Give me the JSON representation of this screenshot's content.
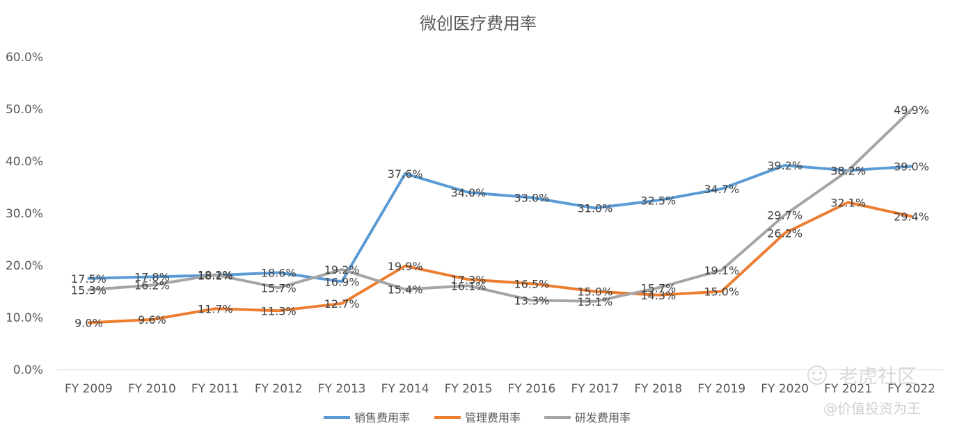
{
  "chart_data": {
    "type": "line",
    "title": "微创医疗费用率",
    "categories": [
      "FY 2009",
      "FY 2010",
      "FY 2011",
      "FY 2012",
      "FY 2013",
      "FY 2014",
      "FY 2015",
      "FY 2016",
      "FY 2017",
      "FY 2018",
      "FY 2019",
      "FY 2020",
      "FY 2021",
      "FY 2022"
    ],
    "ylim": [
      0,
      60
    ],
    "yticks": [
      "0.0%",
      "10.0%",
      "20.0%",
      "30.0%",
      "40.0%",
      "50.0%",
      "60.0%"
    ],
    "xlabel": "",
    "ylabel": "",
    "grid": false,
    "legend_position": "bottom",
    "series": [
      {
        "name": "销售费用率",
        "color": "#5b9bd5",
        "values": [
          17.5,
          17.8,
          18.1,
          18.6,
          16.9,
          37.6,
          34.0,
          33.0,
          31.0,
          32.5,
          34.7,
          39.2,
          38.2,
          39.0
        ],
        "labels": [
          "17.5%",
          "17.8%",
          "18.1%",
          "18.6%",
          "16.9%",
          "37.6%",
          "34.0%",
          "33.0%",
          "31.0%",
          "32.5%",
          "34.7%",
          "39.2%",
          "38.2%",
          "39.0%"
        ]
      },
      {
        "name": "管理费用率",
        "color": "#ed7d31",
        "values": [
          9.0,
          9.6,
          11.7,
          11.3,
          12.7,
          19.9,
          17.3,
          16.5,
          15.0,
          14.3,
          15.0,
          26.2,
          32.1,
          29.4
        ],
        "labels": [
          "9.0%",
          "9.6%",
          "11.7%",
          "11.3%",
          "12.7%",
          "19.9%",
          "17.3%",
          "16.5%",
          "15.0%",
          "14.3%",
          "15.0%",
          "26.2%",
          "32.1%",
          "29.4%"
        ]
      },
      {
        "name": "研发费用率",
        "color": "#a5a5a5",
        "values": [
          15.3,
          16.2,
          18.2,
          15.7,
          19.2,
          15.4,
          16.1,
          13.3,
          13.1,
          15.7,
          19.1,
          29.7,
          38.2,
          49.9
        ],
        "labels": [
          "15.3%",
          "16.2%",
          "18.2%",
          "15.7%",
          "19.2%",
          "15.4%",
          "16.1%",
          "13.3%",
          "13.1%",
          "15.7%",
          "19.1%",
          "29.7%",
          "38.2%",
          "49.9%"
        ]
      }
    ]
  },
  "watermark": {
    "brand": "老虎社区",
    "author": "@价值投资为王"
  }
}
